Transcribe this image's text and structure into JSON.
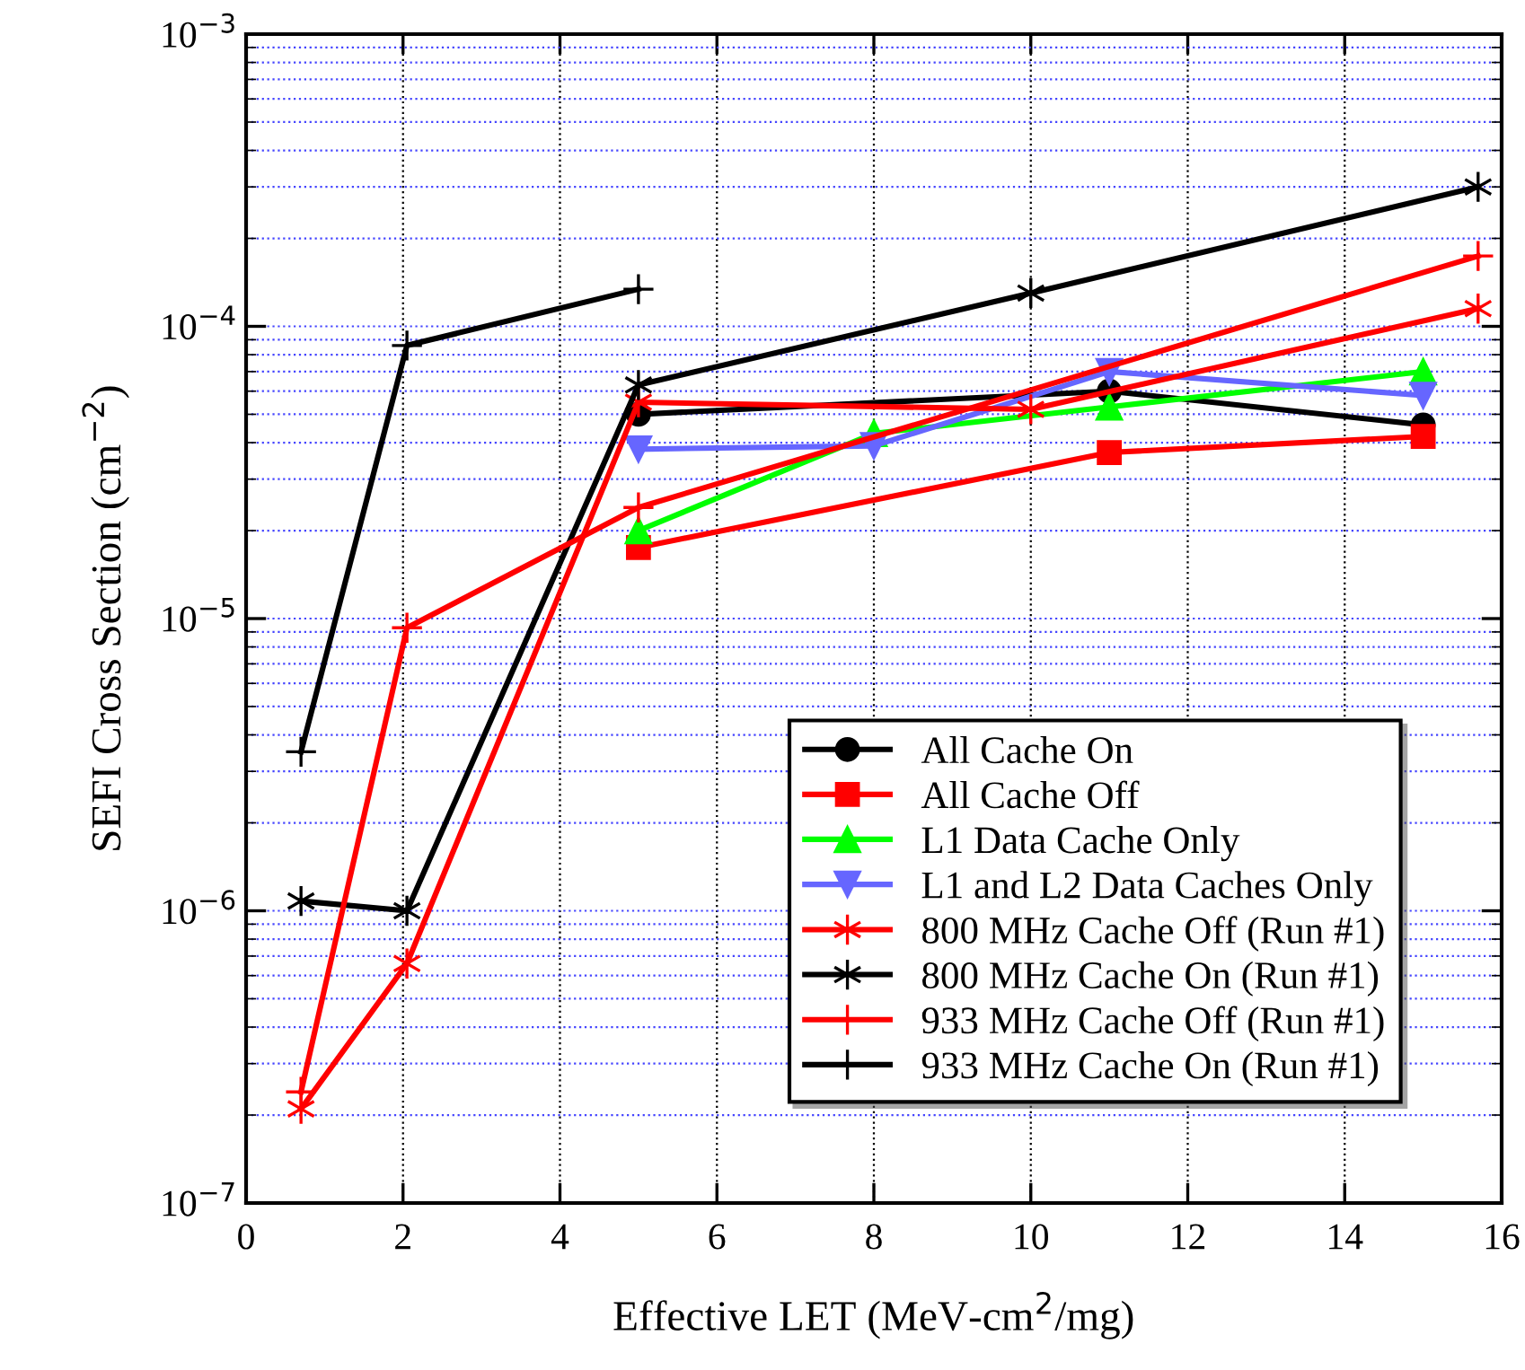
{
  "chart_data": {
    "type": "line",
    "xlabel": "Effective LET (MeV-cm$^{2}$/mg)",
    "ylabel": "SEFI Cross Section (cm$^{−2}$)",
    "log": "y",
    "xlim": [
      0,
      16
    ],
    "xticks": [
      0,
      2,
      4,
      6,
      8,
      10,
      12,
      14,
      16
    ],
    "ylim": [
      1e-07,
      0.001
    ],
    "yticks": [
      {
        "value": 1e-07,
        "label": "10$^{−7}$"
      },
      {
        "value": 1e-06,
        "label": "10$^{−6}$"
      },
      {
        "value": 1e-05,
        "label": "10$^{−5}$"
      },
      {
        "value": 0.0001,
        "label": "10$^{−4}$"
      },
      {
        "value": 0.001,
        "label": "10$^{−3}$"
      }
    ],
    "grid": true,
    "legend": "bottom right",
    "line_style": "solid",
    "series": [
      {
        "name": "All Cache On",
        "color": "#000000",
        "marker": "circle",
        "x": [
          5,
          11,
          15
        ],
        "values": [
          5e-05,
          6e-05,
          4.6e-05
        ]
      },
      {
        "name": "All Cache Off",
        "color": "#ff0000",
        "marker": "square",
        "x": [
          5,
          11,
          15
        ],
        "values": [
          1.75e-05,
          3.7e-05,
          4.2e-05
        ]
      },
      {
        "name": "L1 Data Cache Only",
        "color": "#00ff00",
        "marker": "triangle",
        "x": [
          5,
          8,
          11,
          15
        ],
        "values": [
          2e-05,
          4.3e-05,
          5.3e-05,
          7e-05
        ]
      },
      {
        "name": "L1 and L2 Data Caches Only",
        "color": "#6666ff",
        "marker": "triangle_down",
        "x": [
          5,
          8,
          11,
          15
        ],
        "values": [
          3.8e-05,
          3.9e-05,
          7e-05,
          5.8e-05
        ]
      },
      {
        "name": "800 MHz Cache Off (Run #1)",
        "color": "#ff0000",
        "marker": "cross",
        "x": [
          0.7,
          2.05,
          5,
          10,
          15.7
        ],
        "values": [
          2.1e-07,
          6.6e-07,
          5.5e-05,
          5.2e-05,
          0.000115
        ]
      },
      {
        "name": "800 MHz Cache On (Run #1)",
        "color": "#000000",
        "marker": "cross",
        "x": [
          0.7,
          2.05,
          5,
          10,
          15.7
        ],
        "values": [
          1.08e-06,
          1e-06,
          6.3e-05,
          0.00013,
          0.0003
        ]
      },
      {
        "name": "933 MHz Cache Off (Run #1)",
        "color": "#ff0000",
        "marker": "plus",
        "x": [
          0.7,
          2.05,
          5,
          15.7
        ],
        "values": [
          2.4e-07,
          9.3e-06,
          2.4e-05,
          0.000174
        ]
      },
      {
        "name": "933 MHz Cache On (Run #1)",
        "color": "#000000",
        "marker": "plus",
        "x": [
          0.7,
          2.05,
          5
        ],
        "values": [
          3.5e-06,
          8.6e-05,
          0.000134
        ]
      }
    ]
  }
}
